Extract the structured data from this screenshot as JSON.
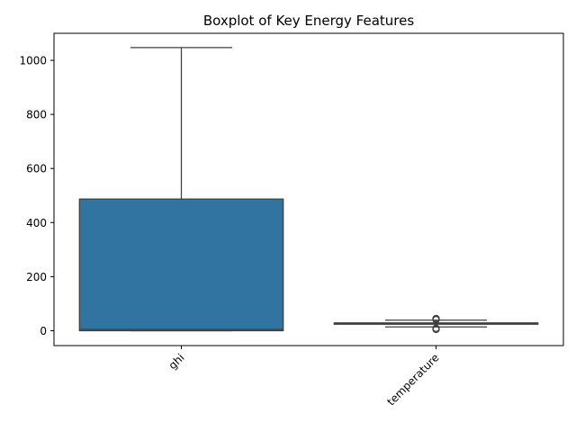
{
  "chart_data": {
    "type": "box",
    "title": "Boxplot of Key Energy Features",
    "xlabel": "",
    "ylabel": "",
    "ylim": [
      -55,
      1100
    ],
    "yticks": [
      0,
      200,
      400,
      600,
      800,
      1000
    ],
    "categories": [
      "ghi",
      "temperature"
    ],
    "grid": false,
    "series": [
      {
        "category": "ghi",
        "color": "#3274a1",
        "whisker_low": 0,
        "q1": 0,
        "median": 5,
        "q3": 487,
        "whisker_high": 1047,
        "outliers": []
      },
      {
        "category": "temperature",
        "color": "#3274a1",
        "whisker_low": 14,
        "q1": 24,
        "median": 27,
        "q3": 29,
        "whisker_high": 39,
        "outliers": [
          5,
          9,
          41,
          43,
          45
        ]
      }
    ]
  }
}
